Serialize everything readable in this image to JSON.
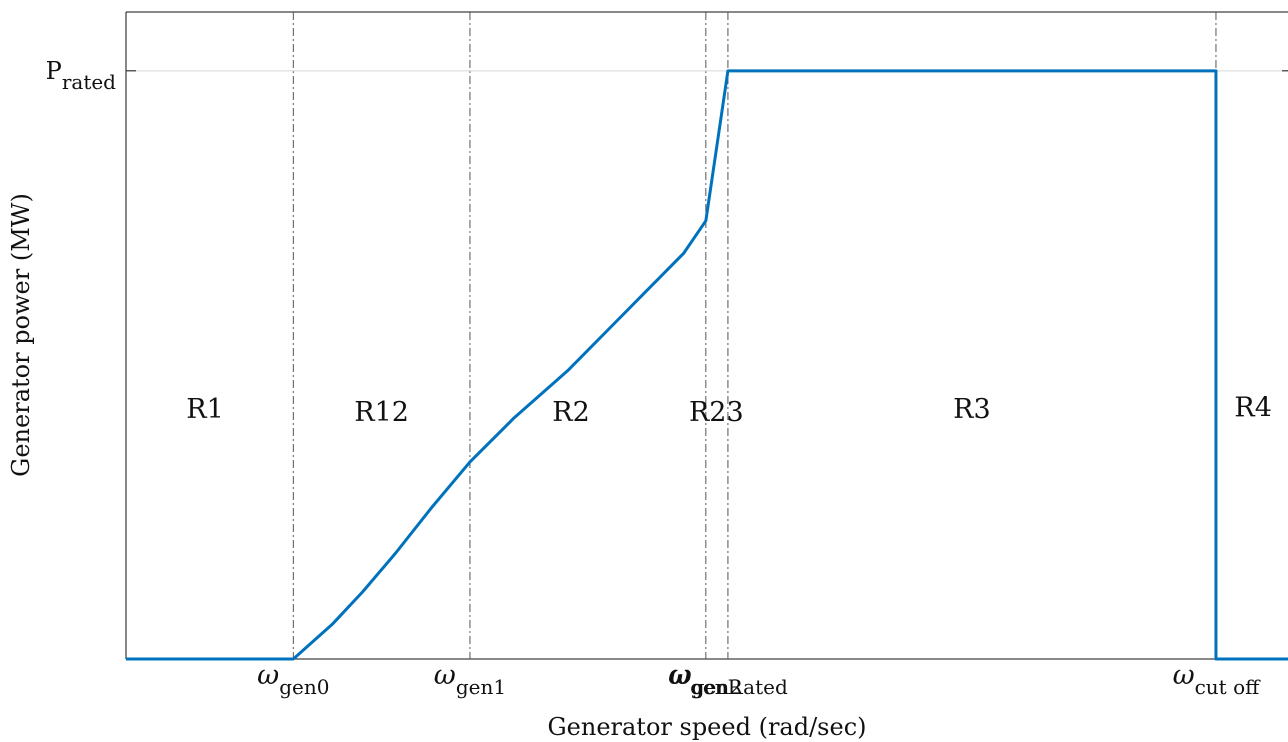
{
  "chart_data": {
    "type": "line",
    "title": "",
    "xlabel": "Generator speed (rad/sec)",
    "ylabel": "Generator power (MW)",
    "series_color": "#0072bd",
    "grid": false,
    "xlim": [
      0,
      1
    ],
    "ylim": [
      0,
      1.1
    ],
    "x_ticks": [
      {
        "value": 0.144,
        "label": "ω",
        "sub": "gen0"
      },
      {
        "value": 0.296,
        "label": "ω",
        "sub": "gen1"
      },
      {
        "value": 0.499,
        "label": "ω",
        "sub": "gen2"
      },
      {
        "value": 0.518,
        "label": "ω",
        "sub": "genRated"
      },
      {
        "value": 0.938,
        "label": "ω",
        "sub": "cut off"
      }
    ],
    "y_ticks": [
      {
        "value": 1.0,
        "label": "P",
        "sub": "rated"
      }
    ],
    "regions": [
      {
        "label": "R1",
        "x": 0.068,
        "y": 0.41
      },
      {
        "label": "R12",
        "x": 0.22,
        "y": 0.405
      },
      {
        "label": "R2",
        "x": 0.383,
        "y": 0.405
      },
      {
        "label": "R23",
        "x": 0.508,
        "y": 0.405
      },
      {
        "label": "R3",
        "x": 0.728,
        "y": 0.41
      },
      {
        "label": "R4",
        "x": 0.97,
        "y": 0.412
      }
    ],
    "series": [
      {
        "x": [
          0,
          0.144,
          0.178,
          0.204,
          0.232,
          0.262,
          0.296,
          0.334,
          0.38,
          0.415,
          0.45,
          0.48,
          0.499,
          0.518,
          0.938,
          0.938,
          1.0
        ],
        "y": [
          0,
          0,
          0.06,
          0.115,
          0.18,
          0.255,
          0.335,
          0.41,
          0.49,
          0.56,
          0.63,
          0.69,
          0.745,
          1.0,
          1.0,
          0,
          0
        ]
      }
    ]
  }
}
